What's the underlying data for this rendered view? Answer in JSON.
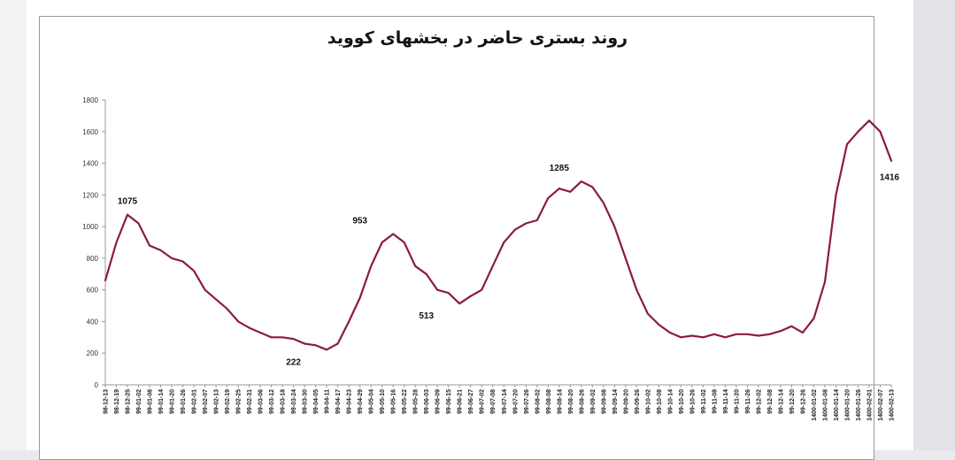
{
  "chart_data": {
    "type": "line",
    "title": "روند بستری حاضر در بخشهای کووید",
    "ylim": [
      0,
      1800
    ],
    "y_ticks": [
      0,
      200,
      400,
      600,
      800,
      1000,
      1200,
      1400,
      1600,
      1800
    ],
    "grid": false,
    "legend": "none",
    "line_color": "#8b1a46",
    "x_tick_labels": [
      "98-12-13",
      "98-12-19",
      "98-12-25",
      "99-01-02",
      "99-01-08",
      "99-01-14",
      "99-01-20",
      "99-01-26",
      "99-02-01",
      "99-02-07",
      "99-02-13",
      "99-02-19",
      "99-02-25",
      "99-02-31",
      "99-03-06",
      "99-03-12",
      "99-03-18",
      "99-03-24",
      "99-03-30",
      "99-04-05",
      "99-04-11",
      "99-04-17",
      "99-04-23",
      "99-04-29",
      "99-05-04",
      "99-05-10",
      "99-05-16",
      "99-05-22",
      "99-05-28",
      "99-06-03",
      "99-06-09",
      "99-06-15",
      "99-06-21",
      "99-06-27",
      "99-07-02",
      "99-07-08",
      "99-07-14",
      "99-07-20",
      "99-07-26",
      "99-08-02",
      "99-08-08",
      "99-08-14",
      "99-08-20",
      "99-08-26",
      "99-09-02",
      "99-09-08",
      "99-09-14",
      "99-09-20",
      "99-09-26",
      "99-10-02",
      "99-10-08",
      "99-10-14",
      "99-10-20",
      "99-10-26",
      "99-11-02",
      "99-11-08",
      "99-11-14",
      "99-11-20",
      "99-11-26",
      "99-12-02",
      "99-12-08",
      "99-12-14",
      "99-12-20",
      "99-12-26",
      "1400-01-02",
      "1400-01-08",
      "1400-01-14",
      "1400-01-20",
      "1400-01-26",
      "1400-02-01",
      "1400-02-07",
      "1400-02-13"
    ],
    "series": [
      {
        "values": [
          660,
          900,
          1075,
          1020,
          880,
          850,
          800,
          780,
          720,
          600,
          540,
          480,
          400,
          360,
          330,
          300,
          300,
          290,
          260,
          250,
          222,
          260,
          400,
          550,
          750,
          900,
          953,
          900,
          750,
          700,
          600,
          580,
          513,
          560,
          600,
          750,
          900,
          980,
          1020,
          1040,
          1180,
          1240,
          1220,
          1285,
          1250,
          1150,
          1000,
          800,
          600,
          450,
          380,
          330,
          300,
          310,
          300,
          320,
          300,
          320,
          320,
          310,
          320,
          340,
          370,
          330,
          420,
          650,
          1200,
          1520,
          1600,
          1670,
          1600,
          1416
        ]
      }
    ],
    "annotations": [
      {
        "label": "1075",
        "x": "98-12-25",
        "y": 1075
      },
      {
        "label": "222",
        "x": "99-03-24",
        "y": 222
      },
      {
        "label": "953",
        "x": "99-04-29",
        "y": 953
      },
      {
        "label": "513",
        "x": "99-06-03",
        "y": 513
      },
      {
        "label": "1285",
        "x": "99-08-14",
        "y": 1285
      },
      {
        "label": "1416",
        "x": "1400-02-13",
        "y": 1416
      }
    ]
  }
}
